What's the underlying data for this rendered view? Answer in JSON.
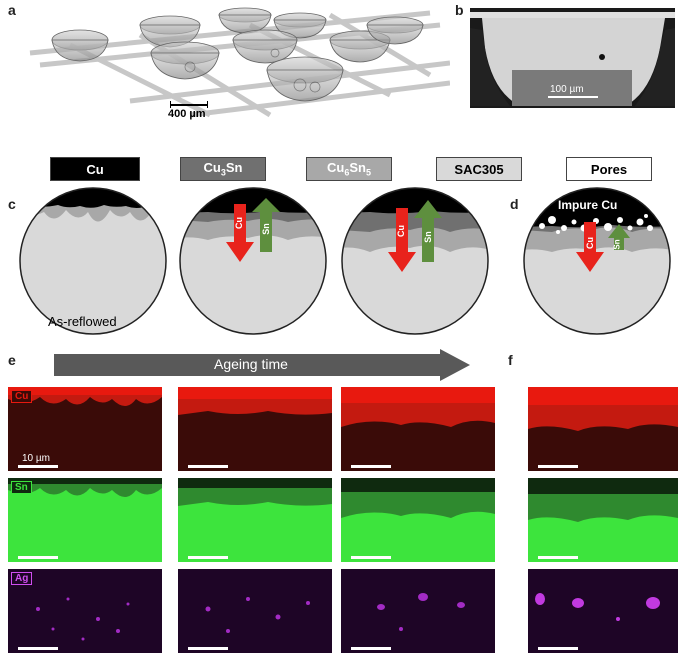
{
  "panels": {
    "a": "a",
    "b": "b",
    "c": "c",
    "d": "d",
    "e": "e",
    "f": "f"
  },
  "panel_a": {
    "scale_label": "400 µm"
  },
  "panel_b": {
    "scale_label": "100 µm"
  },
  "legend": {
    "cu": "Cu",
    "cu3sn_base": "Cu",
    "cu3sn_sub": "3",
    "cu3sn_tail": "Sn",
    "cu6sn5_base": "Cu",
    "cu6sn5_sub1": "6",
    "cu6sn5_mid": "Sn",
    "cu6sn5_sub2": "5",
    "sac305": "SAC305",
    "pores": "Pores"
  },
  "schematic": {
    "as_reflowed": "As-reflowed",
    "impure_cu": "Impure Cu",
    "arrow_cu": "Cu",
    "arrow_sn": "Sn"
  },
  "ageing": {
    "label": "Ageing time"
  },
  "maps": {
    "cu_label": "Cu",
    "sn_label": "Sn",
    "ag_label": "Ag",
    "scale_label": "10 µm"
  },
  "colors": {
    "cu_map": "#e8190f",
    "sn_map": "#3de43d",
    "ag_map": "#a32bc4",
    "solder": "#d9d9d9",
    "cu3sn": "#707070",
    "cu6sn5": "#a8a8a8",
    "arrow_red": "#e8231c",
    "arrow_green": "#5e8f3e"
  }
}
